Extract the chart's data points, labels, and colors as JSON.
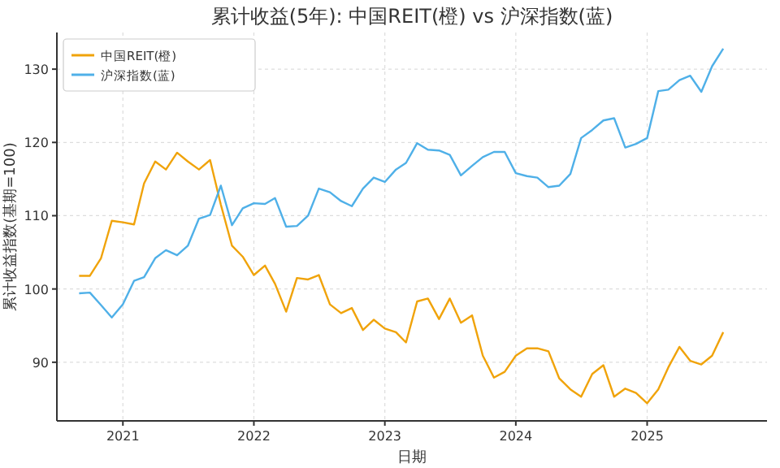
{
  "chart_data": {
    "type": "line",
    "title": "累计收益(5年): 中国REIT(橙) vs 沪深指数(蓝)",
    "xlabel": "日期",
    "ylabel": "累计收益指数(基期=100)",
    "x": [
      "2020-09",
      "2020-10",
      "2020-11",
      "2020-12",
      "2021-01",
      "2021-02",
      "2021-03",
      "2021-04",
      "2021-05",
      "2021-06",
      "2021-07",
      "2021-08",
      "2021-09",
      "2021-10",
      "2021-11",
      "2021-12",
      "2022-01",
      "2022-02",
      "2022-03",
      "2022-04",
      "2022-05",
      "2022-06",
      "2022-07",
      "2022-08",
      "2022-09",
      "2022-10",
      "2022-11",
      "2022-12",
      "2023-01",
      "2023-02",
      "2023-03",
      "2023-04",
      "2023-05",
      "2023-06",
      "2023-07",
      "2023-08",
      "2023-09",
      "2023-10",
      "2023-11",
      "2023-12",
      "2024-01",
      "2024-02",
      "2024-03",
      "2024-04",
      "2024-05",
      "2024-06",
      "2024-07",
      "2024-08",
      "2024-09",
      "2024-10",
      "2024-11",
      "2024-12",
      "2025-01",
      "2025-02",
      "2025-03",
      "2025-04",
      "2025-05",
      "2025-06",
      "2025-07",
      "2025-08"
    ],
    "series": [
      {
        "name": "中国REIT(橙)",
        "color": "#f0a30a",
        "values": [
          101.8,
          101.8,
          104.2,
          109.3,
          109.1,
          108.8,
          114.4,
          117.4,
          116.3,
          118.6,
          117.4,
          116.3,
          117.6,
          111.5,
          105.9,
          104.4,
          101.9,
          103.2,
          100.7,
          96.9,
          101.5,
          101.3,
          101.9,
          97.9,
          96.7,
          97.4,
          94.4,
          95.8,
          94.6,
          94.1,
          92.7,
          98.3,
          98.7,
          95.9,
          98.7,
          95.4,
          96.4,
          90.9,
          87.9,
          88.7,
          90.9,
          91.9,
          91.9,
          91.5,
          87.8,
          86.3,
          85.3,
          88.4,
          89.6,
          85.3,
          86.4,
          85.8,
          84.4,
          86.3,
          89.3,
          92.1,
          90.2,
          89.7,
          90.9,
          94.1
        ]
      },
      {
        "name": "沪深指数(蓝)",
        "color": "#4fb0e8",
        "values": [
          99.4,
          99.5,
          97.8,
          96.1,
          97.9,
          101.1,
          101.6,
          104.2,
          105.3,
          104.6,
          105.9,
          109.6,
          110.1,
          114.1,
          108.7,
          111.0,
          111.7,
          111.6,
          112.4,
          108.5,
          108.6,
          110.0,
          113.7,
          113.2,
          112.0,
          111.3,
          113.7,
          115.2,
          114.6,
          116.3,
          117.2,
          119.9,
          119.0,
          118.9,
          118.3,
          115.5,
          116.8,
          118.0,
          118.7,
          118.7,
          115.8,
          115.4,
          115.2,
          113.9,
          114.1,
          115.7,
          120.6,
          121.7,
          123.0,
          123.3,
          119.3,
          119.8,
          120.6,
          127.0,
          127.2,
          128.5,
          129.1,
          126.9,
          130.4,
          132.8
        ]
      }
    ],
    "xlim": [
      "2020-07",
      "2025-12"
    ],
    "xticks": [
      {
        "value": "2021",
        "label": "2021"
      },
      {
        "value": "2022",
        "label": "2022"
      },
      {
        "value": "2023",
        "label": "2023"
      },
      {
        "value": "2024",
        "label": "2024"
      },
      {
        "value": "2025",
        "label": "2025"
      }
    ],
    "ylim": [
      82,
      135
    ],
    "yticks": [
      90,
      100,
      110,
      120,
      130
    ],
    "grid": true,
    "legend": "top left",
    "line_style": "solid"
  }
}
